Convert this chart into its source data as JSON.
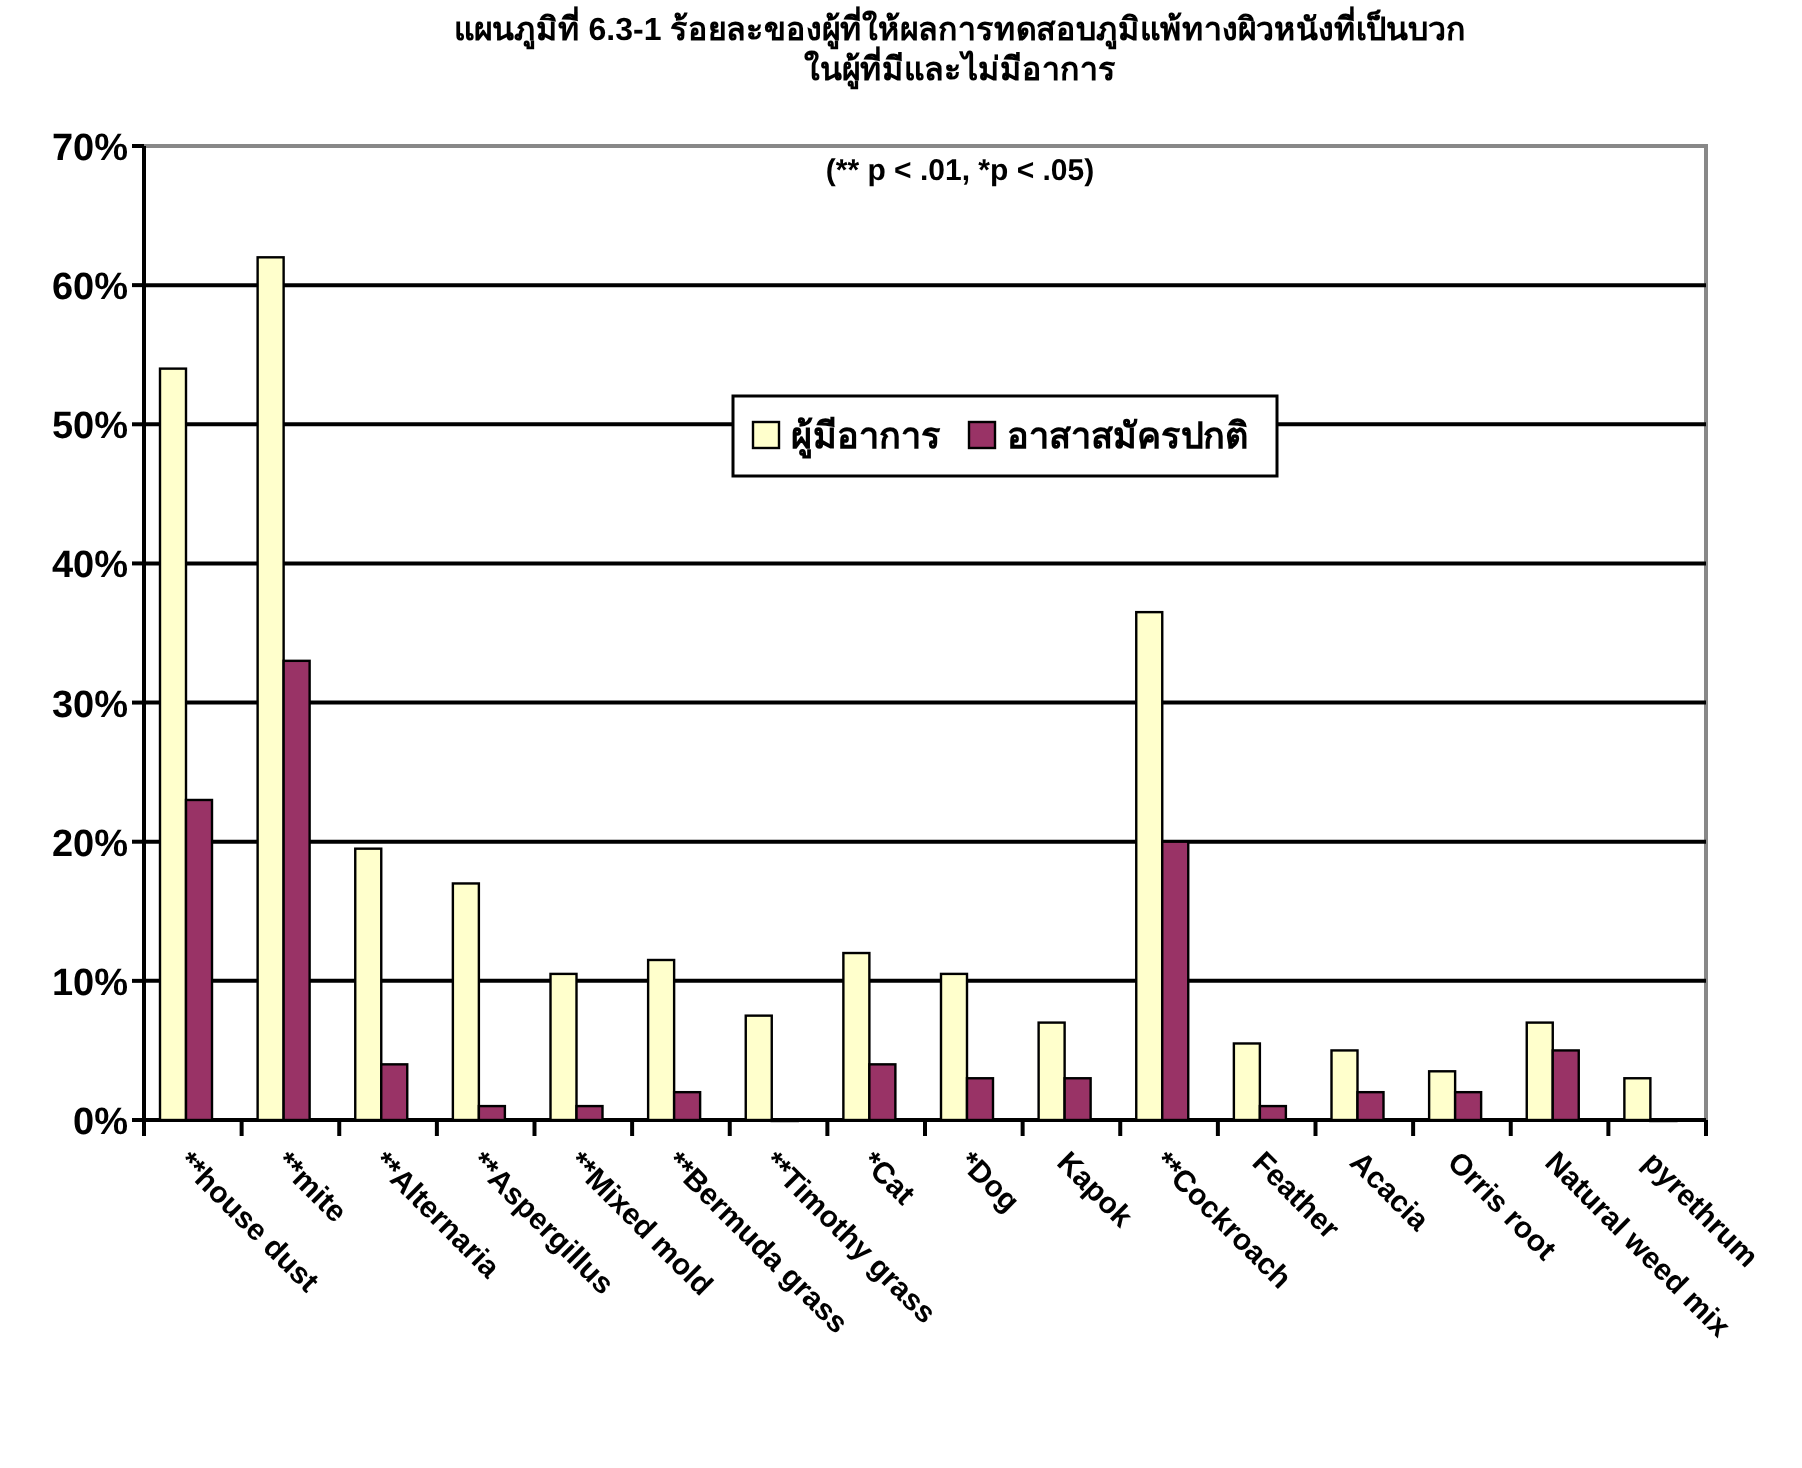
{
  "chart_data": {
    "type": "bar",
    "title": "แผนภูมิที่ 6.3-1  ร้อยละของผู้ที่ให้ผลการทดสอบภูมิแพ้ทางผิวหนังที่เป็นบวก\nในผู้ที่มีและไม่มีอาการ",
    "subtitle": "(** p < .01, *p < .05)",
    "categories": [
      "**house dust",
      "**mite",
      "**Alternaria",
      "**Aspergillus",
      "**Mixed mold",
      "**Bermuda grass",
      "**Timothy grass",
      "*Cat",
      "*Dog",
      "Kapok",
      "**Cockroach",
      "Feather",
      "Acacia",
      "Orris root",
      "Natural weed mix",
      "pyrethrum"
    ],
    "series": [
      {
        "name": "ผู้มีอาการ",
        "color": "#ffffcc",
        "values": [
          54,
          62,
          19.5,
          17,
          10.5,
          11.5,
          7.5,
          12,
          10.5,
          7,
          36.5,
          5.5,
          5,
          3.5,
          7,
          3
        ]
      },
      {
        "name": "อาสาสมัครปกติ",
        "color": "#993366",
        "values": [
          23,
          33,
          4,
          1,
          1,
          2,
          0,
          4,
          3,
          3,
          20,
          1,
          2,
          2,
          5,
          0
        ]
      }
    ],
    "ylim": [
      0,
      70
    ],
    "yticks": [
      {
        "value": 0,
        "label": "0%"
      },
      {
        "value": 10,
        "label": "10%"
      },
      {
        "value": 20,
        "label": "20%"
      },
      {
        "value": 30,
        "label": "30%"
      },
      {
        "value": 40,
        "label": "40%"
      },
      {
        "value": 50,
        "label": "50%"
      },
      {
        "value": 60,
        "label": "60%"
      },
      {
        "value": 70,
        "label": "70%"
      }
    ],
    "grid": "y",
    "legend": "top"
  }
}
